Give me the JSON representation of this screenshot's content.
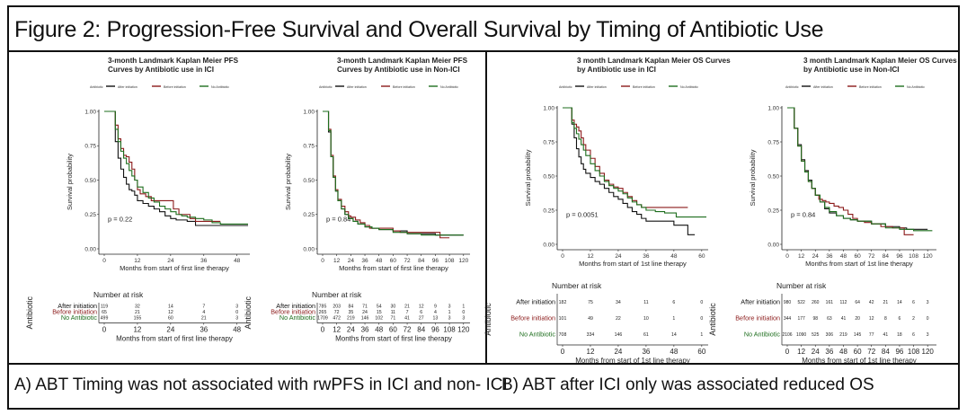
{
  "figure": {
    "title": "Figure 2: Progression-Free Survival and Overall Survival by Timing of Antibiotic Use",
    "caption_a": "A) ABT Timing was not associated with rwPFS in ICI and non- ICI",
    "caption_b": "B) ABT after ICI only was associated reduced OS"
  },
  "colors": {
    "after": "#111111",
    "before": "#8b1a1a",
    "none": "#1e6e1e"
  },
  "chart_data": [
    {
      "type": "line",
      "title": "3-month Landmark Kaplan Meier PFS\nCurves by Antibiotic use in ICI",
      "legend_title": "Antibiotic",
      "legend": [
        "After initiation",
        "Before initiation",
        "No Antibiotic"
      ],
      "legend_position": "top",
      "xlabel": "Months from start of first line therapy",
      "ylabel": "Survival probability",
      "xlim": [
        0,
        52
      ],
      "ylim": [
        0,
        1
      ],
      "xticks": [
        0,
        12,
        24,
        36,
        48
      ],
      "yticks": [
        "0.00",
        "0.25",
        "0.50",
        "0.75",
        "1.00"
      ],
      "pvalue": "p = 0.22",
      "series": [
        {
          "name": "After initiation",
          "key": "after",
          "x": [
            0,
            3,
            4,
            5,
            6,
            7,
            8,
            9,
            10,
            11,
            12,
            14,
            16,
            18,
            20,
            22,
            24,
            26,
            28,
            30,
            33,
            36,
            40,
            52
          ],
          "y": [
            1,
            1,
            0.78,
            0.66,
            0.58,
            0.52,
            0.47,
            0.43,
            0.42,
            0.39,
            0.35,
            0.33,
            0.31,
            0.29,
            0.27,
            0.24,
            0.22,
            0.21,
            0.21,
            0.2,
            0.17,
            0.17,
            0.17,
            0.17
          ]
        },
        {
          "name": "Before initiation",
          "key": "before",
          "x": [
            0,
            3,
            4,
            5,
            6,
            7,
            8,
            9,
            10,
            11,
            12,
            13,
            15,
            17,
            20,
            22,
            24,
            25,
            27,
            29,
            31,
            33,
            36,
            40,
            42
          ],
          "y": [
            1,
            1,
            0.9,
            0.8,
            0.73,
            0.68,
            0.67,
            0.63,
            0.58,
            0.5,
            0.43,
            0.4,
            0.38,
            0.35,
            0.35,
            0.35,
            0.35,
            0.29,
            0.25,
            0.25,
            0.22,
            0.2,
            0.2,
            0.2,
            0.2
          ]
        },
        {
          "name": "No Antibiotic",
          "key": "none",
          "x": [
            0,
            3,
            4,
            5,
            6,
            7,
            8,
            9,
            10,
            11,
            12,
            14,
            16,
            18,
            20,
            22,
            24,
            26,
            28,
            30,
            33,
            36,
            39,
            42,
            52
          ],
          "y": [
            1,
            1,
            0.87,
            0.78,
            0.71,
            0.66,
            0.62,
            0.57,
            0.53,
            0.5,
            0.45,
            0.41,
            0.37,
            0.34,
            0.31,
            0.29,
            0.27,
            0.25,
            0.24,
            0.23,
            0.22,
            0.21,
            0.19,
            0.18,
            0.18
          ]
        }
      ],
      "risk_table": {
        "title": "Number at risk",
        "ylabel": "Antibiotic",
        "rows": [
          {
            "label": "After initiation",
            "key": "after",
            "values": [
              "119",
              "32",
              "14",
              "7",
              "3"
            ]
          },
          {
            "label": "Before initiation",
            "key": "before",
            "values": [
              "65",
              "21",
              "12",
              "4",
              "0"
            ]
          },
          {
            "label": "No Antibiotic",
            "key": "none",
            "values": [
              "499",
              "155",
              "60",
              "21",
              "3"
            ]
          }
        ]
      }
    },
    {
      "type": "line",
      "title": "3-month Landmark Kaplan Meier PFS\nCurves by Antibiotic use in Non-ICI",
      "legend_title": "Antibiotic",
      "legend": [
        "After initiation",
        "Before initiation",
        "No Antibiotic"
      ],
      "legend_position": "top",
      "xlabel": "Months from start of first line therapy",
      "ylabel": "Survival probability",
      "xlim": [
        0,
        124
      ],
      "ylim": [
        0,
        1
      ],
      "xticks": [
        0,
        12,
        24,
        36,
        48,
        60,
        72,
        84,
        96,
        108,
        120
      ],
      "yticks": [
        "0.00",
        "0.25",
        "0.50",
        "0.75",
        "1.00"
      ],
      "pvalue": "p = 0.84",
      "series": [
        {
          "name": "After initiation",
          "key": "after",
          "x": [
            0,
            3,
            5,
            7,
            9,
            11,
            13,
            16,
            19,
            22,
            26,
            30,
            36,
            42,
            48,
            60,
            66,
            72,
            84,
            96,
            108,
            120
          ],
          "y": [
            1,
            1,
            0.85,
            0.67,
            0.52,
            0.42,
            0.35,
            0.29,
            0.25,
            0.22,
            0.2,
            0.18,
            0.16,
            0.15,
            0.14,
            0.13,
            0.13,
            0.11,
            0.11,
            0.1,
            0.1,
            0.1
          ]
        },
        {
          "name": "Before initiation",
          "key": "before",
          "x": [
            0,
            3,
            5,
            7,
            9,
            11,
            13,
            16,
            19,
            22,
            24,
            28,
            32,
            36,
            40,
            48,
            60,
            66,
            72,
            84,
            96,
            100,
            108
          ],
          "y": [
            1,
            1,
            0.87,
            0.68,
            0.53,
            0.43,
            0.36,
            0.31,
            0.27,
            0.24,
            0.23,
            0.21,
            0.19,
            0.17,
            0.15,
            0.15,
            0.13,
            0.12,
            0.12,
            0.12,
            0.12,
            0.08,
            0.08
          ]
        },
        {
          "name": "No Antibiotic",
          "key": "none",
          "x": [
            0,
            3,
            5,
            7,
            9,
            11,
            13,
            16,
            19,
            22,
            26,
            30,
            36,
            42,
            48,
            60,
            72,
            84,
            96,
            108,
            120
          ],
          "y": [
            1,
            1,
            0.86,
            0.67,
            0.52,
            0.42,
            0.35,
            0.29,
            0.25,
            0.22,
            0.2,
            0.18,
            0.16,
            0.15,
            0.14,
            0.12,
            0.11,
            0.1,
            0.1,
            0.1,
            0.1
          ]
        }
      ],
      "risk_table": {
        "title": "Number at risk",
        "ylabel": "Antibiotic",
        "rows": [
          {
            "label": "After initiation",
            "key": "after",
            "values": [
              "785",
              "203",
              "84",
              "71",
              "54",
              "30",
              "21",
              "12",
              "9",
              "3",
              "1"
            ]
          },
          {
            "label": "Before initiation",
            "key": "before",
            "values": [
              "265",
              "72",
              "35",
              "24",
              "15",
              "11",
              "7",
              "6",
              "4",
              "1",
              "0"
            ]
          },
          {
            "label": "No Antibiotic",
            "key": "none",
            "values": [
              "1709",
              "472",
              "219",
              "146",
              "102",
              "71",
              "41",
              "27",
              "13",
              "3",
              "3"
            ]
          }
        ]
      }
    },
    {
      "type": "line",
      "title": "3 month Landmark Kaplan Meier OS Curves\nby Antibiotic use in ICI",
      "legend_title": "Antibiotic",
      "legend": [
        "After initiation",
        "Before initiation",
        "No Antibiotic"
      ],
      "legend_position": "top",
      "xlabel": "Months from start of 1st line therapy",
      "ylabel": "Survival probability",
      "xlim": [
        0,
        62
      ],
      "ylim": [
        0,
        1
      ],
      "xticks": [
        0,
        12,
        24,
        36,
        48,
        60
      ],
      "yticks": [
        "0.00",
        "0.25",
        "0.50",
        "0.75",
        "1.00"
      ],
      "pvalue": "p = 0.0051",
      "series": [
        {
          "name": "After initiation",
          "key": "after",
          "x": [
            0,
            3,
            4,
            5,
            6,
            7,
            8,
            9,
            10,
            12,
            14,
            16,
            18,
            20,
            22,
            24,
            26,
            28,
            30,
            32,
            34,
            36,
            40,
            44,
            48,
            51,
            54,
            57
          ],
          "y": [
            1,
            1,
            0.88,
            0.78,
            0.7,
            0.64,
            0.59,
            0.55,
            0.52,
            0.49,
            0.46,
            0.44,
            0.41,
            0.38,
            0.35,
            0.33,
            0.3,
            0.27,
            0.24,
            0.22,
            0.19,
            0.17,
            0.17,
            0.17,
            0.14,
            0.14,
            0.07,
            0.07
          ]
        },
        {
          "name": "Before initiation",
          "key": "before",
          "x": [
            0,
            3,
            4,
            5,
            6,
            7,
            8,
            9,
            10,
            12,
            14,
            16,
            18,
            20,
            22,
            24,
            26,
            28,
            30,
            32,
            34,
            36,
            40,
            44,
            48,
            54
          ],
          "y": [
            1,
            1,
            0.91,
            0.88,
            0.86,
            0.83,
            0.78,
            0.73,
            0.69,
            0.63,
            0.57,
            0.52,
            0.47,
            0.44,
            0.42,
            0.41,
            0.38,
            0.35,
            0.32,
            0.29,
            0.27,
            0.27,
            0.27,
            0.27,
            0.27,
            0.27
          ]
        },
        {
          "name": "No Antibiotic",
          "key": "none",
          "x": [
            0,
            3,
            4,
            5,
            6,
            7,
            8,
            9,
            10,
            12,
            14,
            16,
            18,
            20,
            22,
            24,
            26,
            28,
            30,
            32,
            34,
            36,
            40,
            44,
            49,
            55,
            62
          ],
          "y": [
            1,
            1,
            0.89,
            0.85,
            0.81,
            0.77,
            0.73,
            0.69,
            0.65,
            0.59,
            0.54,
            0.5,
            0.46,
            0.43,
            0.41,
            0.39,
            0.37,
            0.34,
            0.31,
            0.29,
            0.27,
            0.25,
            0.24,
            0.23,
            0.2,
            0.2,
            0.2
          ]
        }
      ],
      "risk_table": {
        "title": "Number at risk",
        "ylabel": "Antibiotic",
        "rows": [
          {
            "label": "After initiation",
            "key": "after",
            "values": [
              "182",
              "75",
              "34",
              "11",
              "6",
              "0"
            ]
          },
          {
            "label": "Before initiation",
            "key": "before",
            "values": [
              "101",
              "49",
              "22",
              "10",
              "1",
              "0"
            ]
          },
          {
            "label": "No Antibiotic",
            "key": "none",
            "values": [
              "708",
              "334",
              "146",
              "61",
              "14",
              "1"
            ]
          }
        ]
      }
    },
    {
      "type": "line",
      "title": "3 month Landmark Kaplan Meier OS Curves\nby Antibiotic use in Non-ICI",
      "legend_title": "Antibiotic",
      "legend": [
        "After initiation",
        "Before initiation",
        "No Antibiotic"
      ],
      "legend_position": "top",
      "xlabel": "Months from start of 1st line therapy",
      "ylabel": "Survival probability",
      "xlim": [
        0,
        126
      ],
      "ylim": [
        0,
        1
      ],
      "xticks": [
        0,
        12,
        24,
        36,
        48,
        60,
        72,
        84,
        96,
        108,
        120
      ],
      "yticks": [
        "0.00",
        "0.25",
        "0.50",
        "0.75",
        "1.00"
      ],
      "pvalue": "p = 0.84",
      "series": [
        {
          "name": "After initiation",
          "key": "after",
          "x": [
            0,
            3,
            6,
            9,
            12,
            15,
            18,
            21,
            24,
            28,
            32,
            36,
            42,
            48,
            54,
            60,
            72,
            84,
            96,
            102,
            110,
            120
          ],
          "y": [
            1,
            1,
            0.85,
            0.73,
            0.62,
            0.54,
            0.47,
            0.41,
            0.36,
            0.31,
            0.26,
            0.23,
            0.21,
            0.19,
            0.18,
            0.17,
            0.15,
            0.13,
            0.12,
            0.11,
            0.11,
            0.11
          ]
        },
        {
          "name": "Before initiation",
          "key": "before",
          "x": [
            0,
            3,
            6,
            9,
            12,
            15,
            18,
            21,
            24,
            27,
            30,
            33,
            36,
            40,
            44,
            48,
            52,
            56,
            60,
            66,
            72,
            80,
            90,
            100,
            108
          ],
          "y": [
            1,
            1,
            0.85,
            0.72,
            0.61,
            0.53,
            0.46,
            0.41,
            0.36,
            0.33,
            0.32,
            0.31,
            0.3,
            0.28,
            0.27,
            0.25,
            0.22,
            0.19,
            0.17,
            0.16,
            0.15,
            0.13,
            0.12,
            0.07,
            0.07
          ]
        },
        {
          "name": "No Antibiotic",
          "key": "none",
          "x": [
            0,
            3,
            6,
            9,
            12,
            15,
            18,
            21,
            24,
            28,
            32,
            36,
            42,
            48,
            54,
            60,
            72,
            84,
            96,
            108,
            120,
            124
          ],
          "y": [
            1,
            1,
            0.85,
            0.72,
            0.61,
            0.53,
            0.46,
            0.41,
            0.36,
            0.31,
            0.27,
            0.24,
            0.21,
            0.19,
            0.18,
            0.17,
            0.15,
            0.12,
            0.11,
            0.1,
            0.1,
            0.1
          ]
        }
      ],
      "risk_table": {
        "title": "Number at risk",
        "ylabel": "Antibiotic",
        "rows": [
          {
            "label": "After initiation",
            "key": "after",
            "values": [
              "980",
              "522",
              "260",
              "161",
              "112",
              "64",
              "42",
              "21",
              "14",
              "6",
              "3"
            ]
          },
          {
            "label": "Before initiation",
            "key": "before",
            "values": [
              "344",
              "177",
              "98",
              "63",
              "41",
              "20",
              "12",
              "8",
              "6",
              "2",
              "0"
            ]
          },
          {
            "label": "No Antibiotic",
            "key": "none",
            "values": [
              "2106",
              "1090",
              "525",
              "306",
              "219",
              "145",
              "77",
              "41",
              "18",
              "6",
              "3"
            ]
          }
        ]
      }
    }
  ]
}
